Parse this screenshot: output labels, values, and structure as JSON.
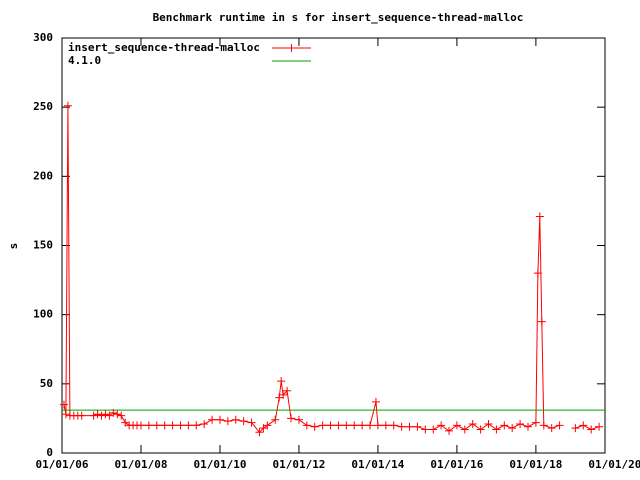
{
  "chart_data": {
    "type": "line",
    "title": "Benchmark runtime in s for insert_sequence-thread-malloc",
    "y_label": "s",
    "xlim": [
      2006,
      2019.75
    ],
    "xticks": [
      {
        "value": 2006,
        "label": "01/01/06"
      },
      {
        "value": 2008,
        "label": "01/01/08"
      },
      {
        "value": 2010,
        "label": "01/01/10"
      },
      {
        "value": 2012,
        "label": "01/01/12"
      },
      {
        "value": 2014,
        "label": "01/01/14"
      },
      {
        "value": 2016,
        "label": "01/01/16"
      },
      {
        "value": 2018,
        "label": "01/01/18"
      },
      {
        "value": 2020,
        "label": "01/01/20"
      }
    ],
    "ylim": [
      0,
      300
    ],
    "yticks": [
      0,
      50,
      100,
      150,
      200,
      250,
      300
    ],
    "legend": "top-left",
    "series": [
      {
        "name": "insert_sequence-thread-malloc",
        "color": "#ff0000",
        "markers": true,
        "x": [
          2006.05,
          2006.1,
          2006.15,
          2006.2,
          2006.3,
          2006.4,
          2006.5,
          2006.8,
          2006.9,
          2007.0,
          2007.1,
          2007.2,
          2007.3,
          2007.4,
          2007.5,
          2007.6,
          2007.7,
          2007.8,
          2007.9,
          2008.0,
          2008.2,
          2008.4,
          2008.6,
          2008.8,
          2009.0,
          2009.2,
          2009.4,
          2009.6,
          2009.8,
          2010.0,
          2010.2,
          2010.4,
          2010.6,
          2010.8,
          2011.0,
          2011.1,
          2011.2,
          2011.4,
          2011.5,
          2011.55,
          2011.6,
          2011.7,
          2011.8,
          2012.0,
          2012.2,
          2012.4,
          2012.6,
          2012.8,
          2013.0,
          2013.2,
          2013.4,
          2013.6,
          2013.8,
          2013.95,
          2014.0,
          2014.2,
          2014.4,
          2014.6,
          2014.8,
          2015.0,
          2015.2,
          2015.4,
          2015.6,
          2015.8,
          2016.0,
          2016.2,
          2016.4,
          2016.6,
          2016.8,
          2017.0,
          2017.2,
          2017.4,
          2017.6,
          2017.8,
          2018.0,
          2018.05,
          2018.1,
          2018.15,
          2018.2,
          2018.4,
          2018.6,
          2018.8,
          2019.0,
          2019.2,
          2019.4,
          2019.6
        ],
        "values": [
          35,
          28,
          251,
          27,
          27,
          27,
          27,
          27,
          28,
          27,
          28,
          27,
          29,
          28,
          27,
          22,
          20,
          20,
          20,
          20,
          20,
          20,
          20,
          20,
          20,
          20,
          20,
          21,
          24,
          24,
          23,
          24,
          23,
          22,
          15,
          18,
          20,
          24,
          40,
          52,
          42,
          45,
          25,
          24,
          20,
          19,
          20,
          20,
          20,
          20,
          20,
          20,
          20,
          37,
          20,
          20,
          20,
          19,
          19,
          19,
          17,
          17,
          20,
          16,
          20,
          17,
          21,
          17,
          21,
          17,
          20,
          18,
          21,
          19,
          22,
          130,
          171,
          95,
          20,
          18,
          20,
          null,
          18,
          20,
          17,
          19
        ]
      },
      {
        "name": "4.1.0",
        "color": "#00a000",
        "markers": false,
        "x": [
          2006,
          2019.75
        ],
        "values": [
          31,
          31
        ]
      }
    ]
  }
}
